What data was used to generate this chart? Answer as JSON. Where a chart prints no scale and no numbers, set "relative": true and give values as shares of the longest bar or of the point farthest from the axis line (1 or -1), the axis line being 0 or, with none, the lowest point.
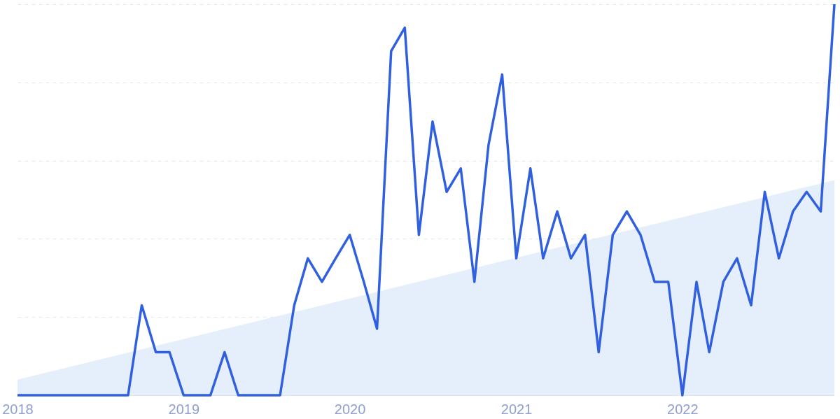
{
  "chart_data": {
    "type": "line",
    "relative": true,
    "grid": "y",
    "x": [
      "2018-01",
      "2018-02",
      "2018-03",
      "2018-04",
      "2018-05",
      "2018-06",
      "2018-07",
      "2018-08",
      "2018-09",
      "2018-10",
      "2018-11",
      "2018-12",
      "2019-01",
      "2019-02",
      "2019-03",
      "2019-04",
      "2019-05",
      "2019-06",
      "2019-07",
      "2019-08",
      "2019-09",
      "2019-10",
      "2019-11",
      "2019-12",
      "2020-01",
      "2020-02",
      "2020-03",
      "2020-04",
      "2020-05",
      "2020-06",
      "2020-07",
      "2020-08",
      "2020-09",
      "2020-10",
      "2020-11",
      "2020-12",
      "2021-01",
      "2021-02",
      "2021-03",
      "2021-04",
      "2021-05",
      "2021-06",
      "2021-07",
      "2021-08",
      "2021-09",
      "2021-10",
      "2021-11",
      "2021-12",
      "2022-01",
      "2022-02",
      "2022-03",
      "2022-04",
      "2022-05",
      "2022-06",
      "2022-07",
      "2022-08",
      "2022-09",
      "2022-10",
      "2022-11",
      "2022-12"
    ],
    "xlim": [
      "2018-01",
      "2022-12"
    ],
    "xticks": [
      {
        "value": "2018-01",
        "label": "2018"
      },
      {
        "value": "2019-01",
        "label": "2019"
      },
      {
        "value": "2020-01",
        "label": "2020"
      },
      {
        "value": "2021-01",
        "label": "2021"
      },
      {
        "value": "2022-01",
        "label": "2022"
      }
    ],
    "series": [
      {
        "type": "area",
        "color": "#e2edfb",
        "x": [
          "2018-01",
          "2022-12"
        ],
        "values": [
          0.04,
          0.55
        ]
      },
      {
        "color": "#3060e0",
        "values": [
          0,
          0,
          0,
          0,
          0,
          0,
          0,
          0,
          0,
          0.23,
          0.11,
          0.11,
          0,
          0,
          0,
          0.11,
          0,
          0,
          0,
          0,
          0.23,
          0.35,
          0.29,
          0.35,
          0.41,
          0.29,
          0.17,
          0.88,
          0.94,
          0.41,
          0.7,
          0.52,
          0.58,
          0.29,
          0.64,
          0.82,
          0.35,
          0.58,
          0.35,
          0.47,
          0.35,
          0.41,
          0.11,
          0.41,
          0.47,
          0.41,
          0.29,
          0.29,
          0,
          0.29,
          0.11,
          0.29,
          0.35,
          0.23,
          0.52,
          0.35,
          0.47,
          0.52,
          0.47,
          1.0
        ]
      }
    ]
  }
}
